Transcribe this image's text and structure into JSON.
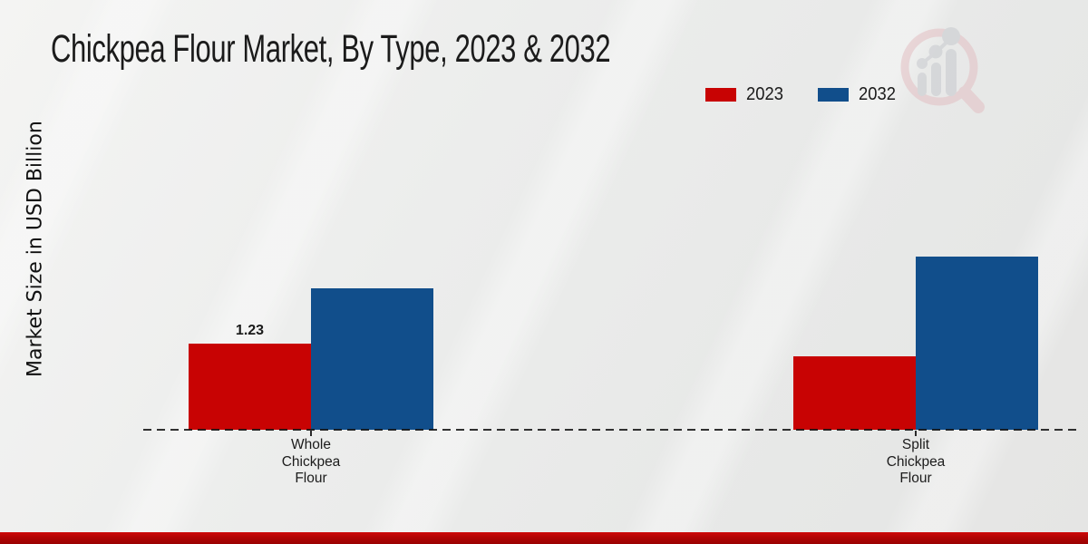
{
  "header": {
    "title": "Chickpea Flour Market, By Type, 2023 & 2032"
  },
  "legend": {
    "items": [
      {
        "label": "2023",
        "color": "#c80303"
      },
      {
        "label": "2032",
        "color": "#114e8b"
      }
    ]
  },
  "watermark": {
    "icon": "magnifier-bar-chart-logo-icon"
  },
  "chart_data": {
    "type": "bar",
    "title": "Chickpea Flour Market, By Type, 2023 & 2032",
    "xlabel": "",
    "ylabel": "Market Size in USD Billion",
    "categories": [
      "Whole Chickpea Flour",
      "Split Chickpea Flour"
    ],
    "series": [
      {
        "name": "2023",
        "color": "#c80303",
        "values": [
          1.23,
          1.05
        ]
      },
      {
        "name": "2032",
        "color": "#114e8b",
        "values": [
          2.02,
          2.47
        ]
      }
    ],
    "data_labels": [
      {
        "series": "2023",
        "category": "Whole Chickpea Flour",
        "text": "1.23"
      }
    ],
    "ylim": [
      0,
      2.6
    ],
    "grid": false,
    "y_axis_ticks_visible": false,
    "baseline_style": "dashed",
    "legend_position": "top-right"
  }
}
